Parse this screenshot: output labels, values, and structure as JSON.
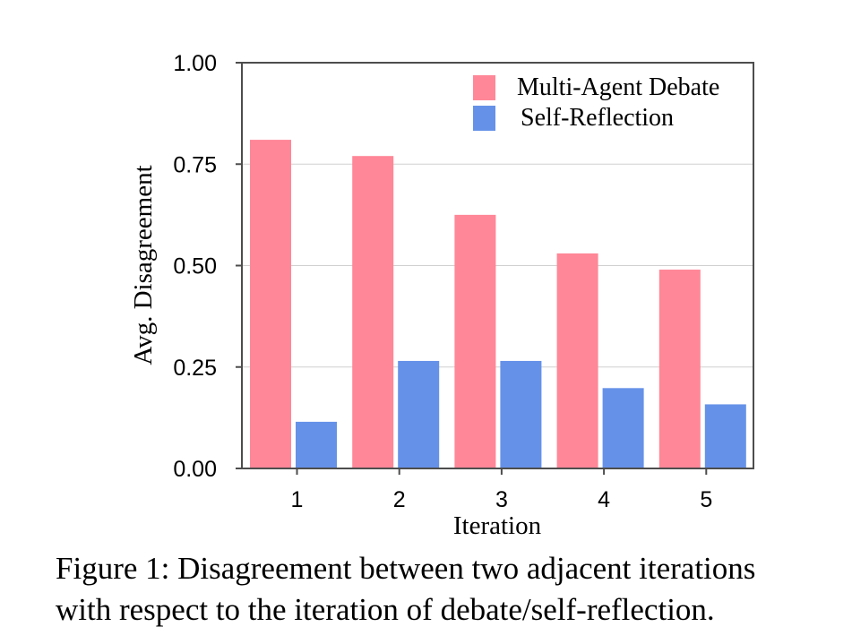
{
  "chart_data": {
    "type": "bar",
    "categories": [
      "1",
      "2",
      "3",
      "4",
      "5"
    ],
    "series": [
      {
        "name": "Multi-Agent Debate",
        "color": "#ff8797",
        "values": [
          0.81,
          0.77,
          0.625,
          0.53,
          0.49
        ]
      },
      {
        "name": "Self-Reflection",
        "color": "#6591e8",
        "values": [
          0.115,
          0.265,
          0.265,
          0.198,
          0.158
        ]
      }
    ],
    "xlabel": "Iteration",
    "ylabel": "Avg. Disagreement",
    "ylim": [
      0,
      1
    ],
    "yticks": [
      "0.00",
      "0.25",
      "0.50",
      "0.75",
      "1.00"
    ],
    "grid": true,
    "legend_position": "top-right"
  },
  "caption": {
    "line1": "Figure 1: Disagreement between two adjacent iterations",
    "line2": "with respect to the iteration of debate/self-reflection."
  }
}
